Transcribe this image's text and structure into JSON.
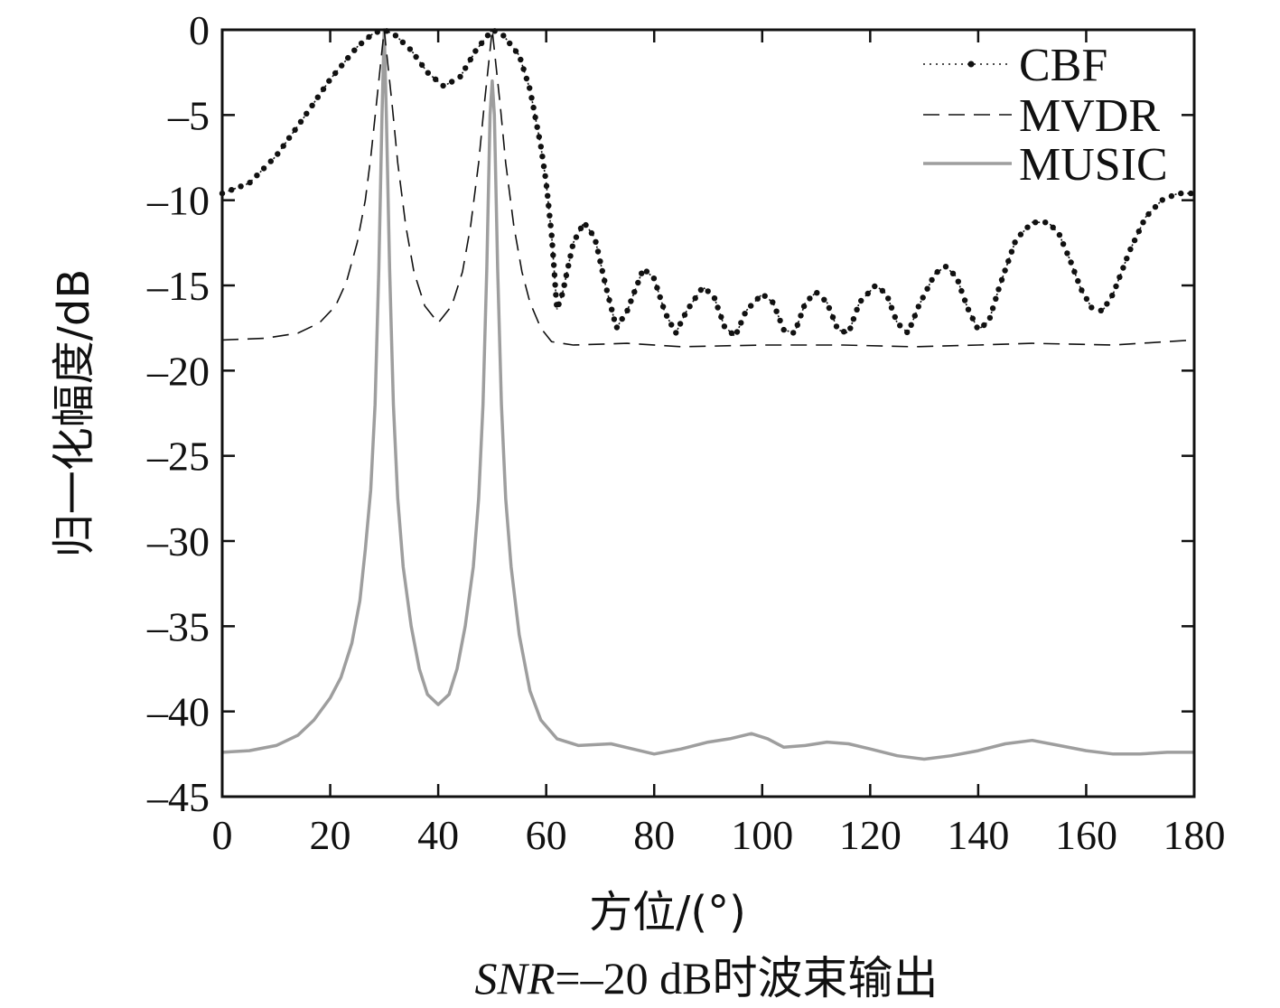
{
  "chart_data": {
    "type": "line",
    "xlabel": "方位/(°)",
    "ylabel": "归一化幅度/dB",
    "caption": {
      "italic_part": "SNR",
      "rest": "=–20 dB时波束输出"
    },
    "xlim": [
      0,
      180
    ],
    "ylim": [
      -45,
      0
    ],
    "x_ticks": [
      0,
      20,
      40,
      60,
      80,
      100,
      120,
      140,
      160,
      180
    ],
    "y_ticks": [
      0,
      -5,
      -10,
      -15,
      -20,
      -25,
      -30,
      -35,
      -40,
      -45
    ],
    "y_tick_labels": [
      "0",
      "–5",
      "–10",
      "–15",
      "–20",
      "–25",
      "–30",
      "–35",
      "–40",
      "–45"
    ],
    "grid": false,
    "legend_position": "top-right",
    "series": [
      {
        "name": "CBF",
        "style": "dotted-with-markers",
        "color": "#111111",
        "points": [
          [
            0,
            -9.6
          ],
          [
            5,
            -9.0
          ],
          [
            10,
            -7.4
          ],
          [
            15,
            -5.2
          ],
          [
            20,
            -2.9
          ],
          [
            25,
            -1.0
          ],
          [
            28,
            -0.2
          ],
          [
            30,
            0
          ],
          [
            32,
            -0.3
          ],
          [
            35,
            -1.2
          ],
          [
            38,
            -2.5
          ],
          [
            41,
            -3.3
          ],
          [
            44,
            -2.8
          ],
          [
            47,
            -1.2
          ],
          [
            50,
            0
          ],
          [
            52,
            -0.3
          ],
          [
            55,
            -1.5
          ],
          [
            57,
            -3.5
          ],
          [
            59,
            -6.8
          ],
          [
            60,
            -9.0
          ],
          [
            61,
            -12.0
          ],
          [
            62,
            -16.4
          ],
          [
            63,
            -15.5
          ],
          [
            65,
            -12.5
          ],
          [
            67,
            -11.3
          ],
          [
            69,
            -12.2
          ],
          [
            71,
            -15.0
          ],
          [
            73,
            -17.5
          ],
          [
            75,
            -16.5
          ],
          [
            78,
            -14.0
          ],
          [
            80,
            -14.6
          ],
          [
            82,
            -16.6
          ],
          [
            84,
            -17.8
          ],
          [
            86,
            -16.5
          ],
          [
            89,
            -15.1
          ],
          [
            91,
            -15.6
          ],
          [
            93,
            -17.4
          ],
          [
            95,
            -18.0
          ],
          [
            97,
            -16.5
          ],
          [
            100,
            -15.5
          ],
          [
            102,
            -16.0
          ],
          [
            104,
            -17.6
          ],
          [
            106,
            -17.8
          ],
          [
            108,
            -16.0
          ],
          [
            110,
            -15.4
          ],
          [
            112,
            -16.0
          ],
          [
            114,
            -17.6
          ],
          [
            116,
            -17.8
          ],
          [
            118,
            -16.0
          ],
          [
            121,
            -15.0
          ],
          [
            123,
            -15.5
          ],
          [
            125,
            -17.2
          ],
          [
            127,
            -17.8
          ],
          [
            129,
            -16.2
          ],
          [
            132,
            -14.3
          ],
          [
            134,
            -13.9
          ],
          [
            136,
            -14.5
          ],
          [
            138,
            -16.3
          ],
          [
            140,
            -17.6
          ],
          [
            142,
            -17.1
          ],
          [
            144,
            -15.0
          ],
          [
            147,
            -12.3
          ],
          [
            150,
            -11.3
          ],
          [
            153,
            -11.3
          ],
          [
            155,
            -12.0
          ],
          [
            157,
            -13.5
          ],
          [
            159,
            -15.2
          ],
          [
            161,
            -16.3
          ],
          [
            163,
            -16.5
          ],
          [
            165,
            -15.5
          ],
          [
            168,
            -13.0
          ],
          [
            171,
            -11.0
          ],
          [
            174,
            -10.0
          ],
          [
            177,
            -9.6
          ],
          [
            180,
            -9.6
          ]
        ]
      },
      {
        "name": "MVDR",
        "style": "dashed",
        "color": "#111111",
        "points": [
          [
            0,
            -18.2
          ],
          [
            8,
            -18.1
          ],
          [
            14,
            -17.8
          ],
          [
            18,
            -17.2
          ],
          [
            21,
            -16.2
          ],
          [
            23,
            -14.8
          ],
          [
            25,
            -12.5
          ],
          [
            26.5,
            -10.0
          ],
          [
            27.5,
            -7.5
          ],
          [
            28.5,
            -4.5
          ],
          [
            29.5,
            -1.5
          ],
          [
            30,
            0
          ],
          [
            30.5,
            -1.5
          ],
          [
            31.5,
            -4.5
          ],
          [
            32.5,
            -7.8
          ],
          [
            34,
            -11.5
          ],
          [
            35.5,
            -14.2
          ],
          [
            37.5,
            -16.2
          ],
          [
            40,
            -17.2
          ],
          [
            42.5,
            -16.2
          ],
          [
            44.5,
            -14.2
          ],
          [
            46,
            -11.5
          ],
          [
            47.5,
            -7.8
          ],
          [
            48.5,
            -4.5
          ],
          [
            49.5,
            -1.5
          ],
          [
            50,
            0
          ],
          [
            50.5,
            -1.5
          ],
          [
            51.5,
            -4.5
          ],
          [
            52.5,
            -7.8
          ],
          [
            54,
            -11.5
          ],
          [
            55.5,
            -14.2
          ],
          [
            57,
            -16.0
          ],
          [
            59,
            -17.5
          ],
          [
            61,
            -18.3
          ],
          [
            65,
            -18.5
          ],
          [
            75,
            -18.4
          ],
          [
            85,
            -18.6
          ],
          [
            100,
            -18.5
          ],
          [
            115,
            -18.5
          ],
          [
            128,
            -18.6
          ],
          [
            140,
            -18.5
          ],
          [
            150,
            -18.4
          ],
          [
            165,
            -18.5
          ],
          [
            180,
            -18.2
          ]
        ]
      },
      {
        "name": "MUSIC",
        "style": "solid",
        "color": "#9e9e9e",
        "points": [
          [
            0,
            -42.4
          ],
          [
            5,
            -42.3
          ],
          [
            10,
            -42.0
          ],
          [
            14,
            -41.4
          ],
          [
            17,
            -40.5
          ],
          [
            20,
            -39.2
          ],
          [
            22,
            -38.0
          ],
          [
            24,
            -36.0
          ],
          [
            25.5,
            -33.5
          ],
          [
            26.5,
            -30.5
          ],
          [
            27.5,
            -27.0
          ],
          [
            28.3,
            -22.0
          ],
          [
            29,
            -14.0
          ],
          [
            29.6,
            -5.0
          ],
          [
            30,
            0
          ],
          [
            30.4,
            -5.0
          ],
          [
            31,
            -14.0
          ],
          [
            31.7,
            -22.0
          ],
          [
            32.5,
            -27.5
          ],
          [
            33.5,
            -31.5
          ],
          [
            35,
            -35.0
          ],
          [
            36.5,
            -37.5
          ],
          [
            38,
            -39.0
          ],
          [
            40,
            -39.6
          ],
          [
            42,
            -39.0
          ],
          [
            43.5,
            -37.5
          ],
          [
            45,
            -35.0
          ],
          [
            46.5,
            -31.5
          ],
          [
            47.5,
            -27.5
          ],
          [
            48.3,
            -22.0
          ],
          [
            49,
            -14.0
          ],
          [
            49.6,
            -5.0
          ],
          [
            50,
            -3.0
          ],
          [
            50.4,
            -5.0
          ],
          [
            51,
            -14.0
          ],
          [
            51.7,
            -22.0
          ],
          [
            52.5,
            -27.5
          ],
          [
            53.5,
            -31.5
          ],
          [
            55,
            -35.5
          ],
          [
            57,
            -38.8
          ],
          [
            59,
            -40.5
          ],
          [
            62,
            -41.6
          ],
          [
            66,
            -42.0
          ],
          [
            72,
            -41.9
          ],
          [
            76,
            -42.2
          ],
          [
            80,
            -42.5
          ],
          [
            85,
            -42.2
          ],
          [
            90,
            -41.8
          ],
          [
            94,
            -41.6
          ],
          [
            98,
            -41.3
          ],
          [
            101,
            -41.6
          ],
          [
            104,
            -42.1
          ],
          [
            108,
            -42.0
          ],
          [
            112,
            -41.8
          ],
          [
            116,
            -41.9
          ],
          [
            120,
            -42.2
          ],
          [
            125,
            -42.6
          ],
          [
            130,
            -42.8
          ],
          [
            135,
            -42.6
          ],
          [
            140,
            -42.3
          ],
          [
            145,
            -41.9
          ],
          [
            150,
            -41.7
          ],
          [
            155,
            -42.0
          ],
          [
            160,
            -42.3
          ],
          [
            165,
            -42.5
          ],
          [
            170,
            -42.5
          ],
          [
            175,
            -42.4
          ],
          [
            180,
            -42.4
          ]
        ]
      }
    ]
  }
}
